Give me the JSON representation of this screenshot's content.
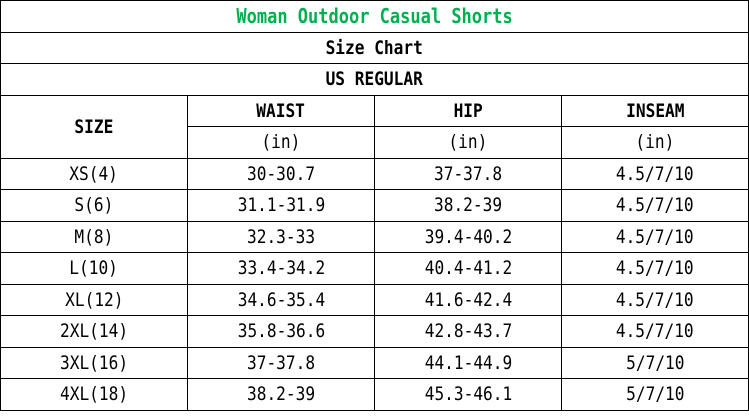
{
  "title": "Woman Outdoor Casual Shorts",
  "subtitle": "Size Chart",
  "region": "US REGULAR",
  "colors": {
    "title": "#00b050",
    "border": "#000000"
  },
  "headers": {
    "size": "SIZE",
    "waist": "WAIST",
    "hip": "HIP",
    "inseam": "INSEAM",
    "unit": "(in)"
  },
  "rows": [
    {
      "size": "XS(4)",
      "waist": "30-30.7",
      "hip": "37-37.8",
      "inseam": "4.5/7/10"
    },
    {
      "size": "S(6)",
      "waist": "31.1-31.9",
      "hip": "38.2-39",
      "inseam": "4.5/7/10"
    },
    {
      "size": "M(8)",
      "waist": "32.3-33",
      "hip": "39.4-40.2",
      "inseam": "4.5/7/10"
    },
    {
      "size": "L(10)",
      "waist": "33.4-34.2",
      "hip": "40.4-41.2",
      "inseam": "4.5/7/10"
    },
    {
      "size": "XL(12)",
      "waist": "34.6-35.4",
      "hip": "41.6-42.4",
      "inseam": "4.5/7/10"
    },
    {
      "size": "2XL(14)",
      "waist": "35.8-36.6",
      "hip": "42.8-43.7",
      "inseam": "4.5/7/10"
    },
    {
      "size": "3XL(16)",
      "waist": "37-37.8",
      "hip": "44.1-44.9",
      "inseam": "5/7/10"
    },
    {
      "size": "4XL(18)",
      "waist": "38.2-39",
      "hip": "45.3-46.1",
      "inseam": "5/7/10"
    }
  ]
}
